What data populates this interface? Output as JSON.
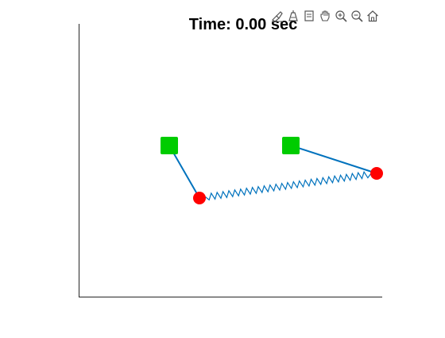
{
  "figure": {
    "title": "Time: 0.00 sec"
  },
  "toolbar": {
    "tools": [
      {
        "name": "brush-data-icon"
      },
      {
        "name": "data-cursor-icon"
      },
      {
        "name": "restore-view-icon"
      },
      {
        "name": "pan-icon"
      },
      {
        "name": "zoom-in-icon"
      },
      {
        "name": "zoom-out-icon"
      },
      {
        "name": "home-icon"
      }
    ]
  },
  "colors": {
    "anchor": "#00cc00",
    "mass": "#ff0000",
    "rod": "#0072bd",
    "spring": "#0072bd",
    "axis": "#262626"
  },
  "scene": {
    "anchors": [
      {
        "x": 213,
        "y": 183
      },
      {
        "x": 366,
        "y": 183
      }
    ],
    "masses": [
      {
        "x": 251,
        "y": 249
      },
      {
        "x": 474,
        "y": 218
      }
    ],
    "spring_coils": 28
  }
}
